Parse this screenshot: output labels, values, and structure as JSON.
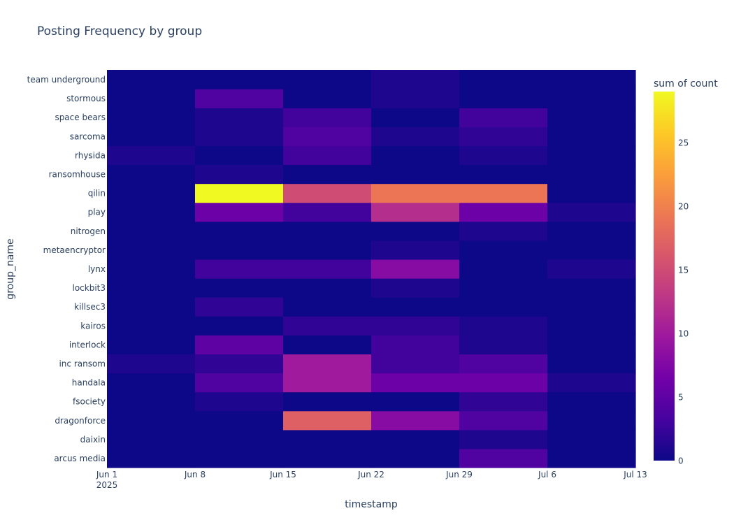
{
  "chart_data": {
    "type": "heatmap",
    "title": "Posting Frequency by group",
    "xlabel": "timestamp",
    "ylabel": "group_name",
    "colorbar_title": "sum of count",
    "x_ticks": [
      "Jun 1",
      "Jun 8",
      "Jun 15",
      "Jun 22",
      "Jun 29",
      "Jul 6",
      "Jul 13"
    ],
    "x_tick_year": "2025",
    "x_bins": [
      "2025-06-01",
      "2025-06-08",
      "2025-06-15",
      "2025-06-22",
      "2025-06-29",
      "2025-07-06"
    ],
    "y_categories": [
      "arcus media",
      "daixin",
      "dragonforce",
      "fsociety",
      "handala",
      "inc ransom",
      "interlock",
      "kairos",
      "killsec3",
      "lockbit3",
      "lynx",
      "metaencryptor",
      "nitrogen",
      "play",
      "qilin",
      "ransomhouse",
      "rhysida",
      "sarcoma",
      "space bears",
      "stormous",
      "team underground"
    ],
    "z": [
      [
        0,
        0,
        0,
        0,
        4,
        0
      ],
      [
        0,
        0,
        0,
        0,
        1,
        0
      ],
      [
        0,
        0,
        17,
        8,
        4,
        0
      ],
      [
        0,
        1,
        0,
        0,
        2,
        0
      ],
      [
        0,
        4,
        10,
        6,
        6,
        1
      ],
      [
        1,
        2,
        10,
        3,
        4,
        0
      ],
      [
        0,
        5,
        0,
        3,
        1,
        0
      ],
      [
        0,
        0,
        2,
        2,
        1,
        0
      ],
      [
        0,
        2,
        0,
        0,
        0,
        0
      ],
      [
        0,
        0,
        0,
        1,
        0,
        0
      ],
      [
        0,
        3,
        3,
        8,
        0,
        1
      ],
      [
        0,
        0,
        0,
        1,
        0,
        0
      ],
      [
        0,
        0,
        0,
        0,
        1,
        0
      ],
      [
        0,
        6,
        3,
        12,
        6,
        1
      ],
      [
        0,
        29,
        15,
        19,
        19,
        0
      ],
      [
        0,
        1,
        0,
        0,
        0,
        0
      ],
      [
        1,
        0,
        3,
        0,
        1,
        0
      ],
      [
        0,
        1,
        4,
        1,
        2,
        0
      ],
      [
        0,
        1,
        3,
        0,
        3,
        0
      ],
      [
        0,
        4,
        0,
        1,
        0,
        0
      ],
      [
        0,
        0,
        0,
        1,
        0,
        0
      ]
    ],
    "zlim": [
      0,
      29
    ],
    "colorbar_ticks": [
      0,
      5,
      10,
      15,
      20,
      25
    ],
    "colorscale": [
      "#0d0887",
      "#46039f",
      "#7201a8",
      "#9c179e",
      "#bd3786",
      "#d8576b",
      "#ed7953",
      "#fb9f3a",
      "#fdca26",
      "#f0f921"
    ],
    "grid": false,
    "legend": "colorbar-right"
  }
}
